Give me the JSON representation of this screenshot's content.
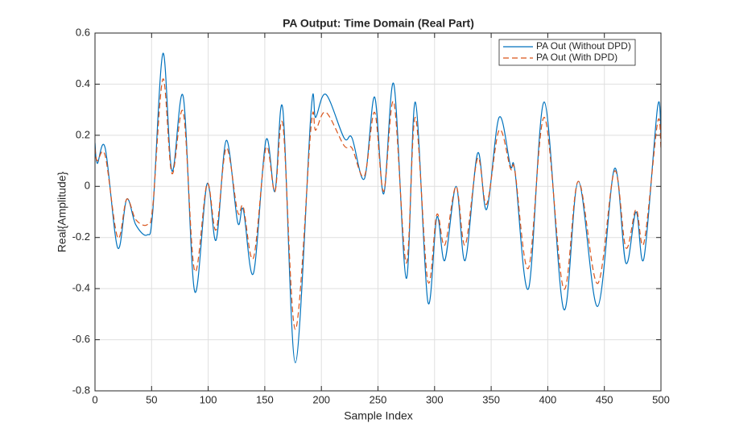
{
  "chart_data": {
    "type": "line",
    "title": "PA Output: Time Domain (Real Part)",
    "x_label": "Sample Index",
    "y_label": "Real{Amplitude}",
    "x": [
      0,
      2,
      9,
      20,
      28,
      36,
      46,
      51,
      60,
      68,
      78,
      88,
      99,
      107,
      116,
      126,
      131,
      140,
      151,
      159,
      166,
      177,
      191,
      195,
      204,
      220,
      227,
      238,
      247,
      255,
      264,
      275,
      283,
      294,
      302,
      309,
      319,
      327,
      338,
      346,
      357,
      367,
      371,
      383,
      397,
      414,
      427,
      444,
      459,
      469,
      478,
      485,
      497,
      500
    ],
    "series": [
      {
        "name": "PA Out (Without DPD)",
        "color": "#0072bd",
        "dash": "solid",
        "values": [
          0.17,
          0.09,
          0.15,
          -0.24,
          -0.05,
          -0.15,
          -0.19,
          -0.1,
          0.52,
          0.06,
          0.35,
          -0.41,
          0.01,
          -0.21,
          0.18,
          -0.14,
          -0.09,
          -0.34,
          0.18,
          -0.02,
          0.3,
          -0.69,
          0.3,
          0.27,
          0.36,
          0.19,
          0.19,
          0.03,
          0.35,
          -0.03,
          0.4,
          -0.36,
          0.33,
          -0.45,
          -0.12,
          -0.29,
          0.0,
          -0.29,
          0.13,
          -0.09,
          0.27,
          0.08,
          0.06,
          -0.4,
          0.33,
          -0.48,
          0.02,
          -0.47,
          0.07,
          -0.3,
          -0.1,
          -0.28,
          0.31,
          0.2
        ]
      },
      {
        "name": "PA Out (With DPD)",
        "color": "#d95319",
        "dash": "dashed",
        "values": [
          0.15,
          0.1,
          0.12,
          -0.2,
          -0.05,
          -0.13,
          -0.15,
          -0.08,
          0.42,
          0.05,
          0.29,
          -0.33,
          0.01,
          -0.17,
          0.15,
          -0.1,
          -0.08,
          -0.28,
          0.15,
          -0.02,
          0.24,
          -0.56,
          0.24,
          0.22,
          0.29,
          0.16,
          0.15,
          0.04,
          0.29,
          -0.02,
          0.33,
          -0.3,
          0.27,
          -0.37,
          -0.11,
          -0.23,
          0.0,
          -0.23,
          0.11,
          -0.07,
          0.22,
          0.07,
          0.06,
          -0.32,
          0.27,
          -0.4,
          0.02,
          -0.38,
          0.06,
          -0.24,
          -0.09,
          -0.22,
          0.25,
          0.15
        ]
      }
    ],
    "xlim": [
      0,
      500
    ],
    "xticks": [
      0,
      50,
      100,
      150,
      200,
      250,
      300,
      350,
      400,
      450,
      500
    ],
    "ylim": [
      -0.8,
      0.6
    ],
    "yticks": [
      -0.8,
      -0.6,
      -0.4,
      -0.2,
      0,
      0.2,
      0.4,
      0.6
    ],
    "grid": true,
    "legend": "upper right"
  }
}
